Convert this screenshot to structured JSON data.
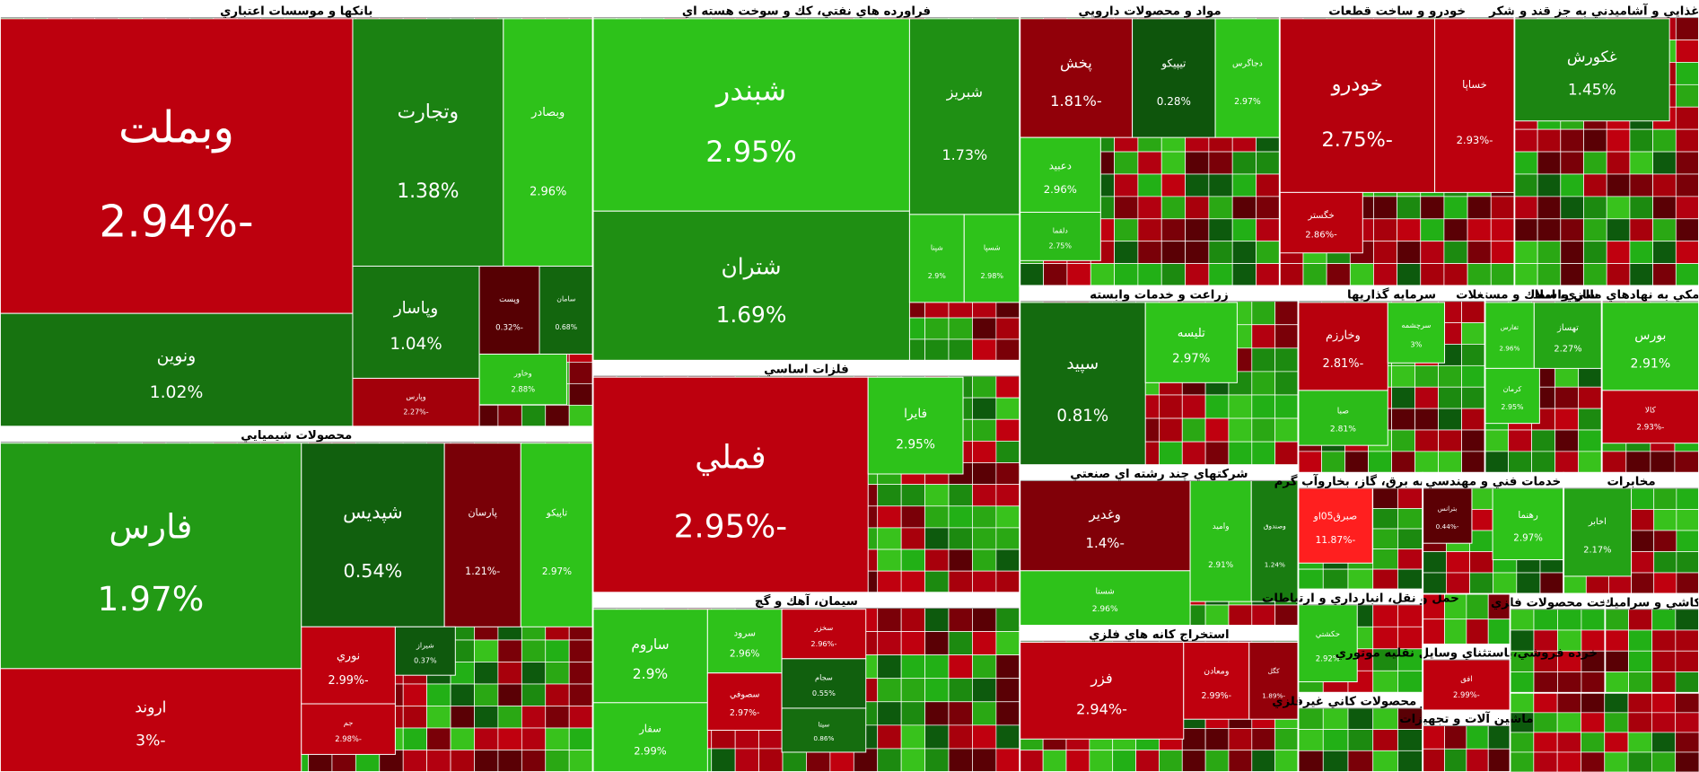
{
  "sectors": [
    {
      "title": "بانكها و موسسات اعتباري",
      "tiles": [
        {
          "name": "وبملت",
          "change": "-2.94%"
        },
        {
          "name": "ونوين",
          "change": "1.02%"
        },
        {
          "name": "وتجارت",
          "change": "1.38%"
        },
        {
          "name": "وبصادر",
          "change": "2.96%"
        },
        {
          "name": "وپاسار",
          "change": "1.04%"
        },
        {
          "name": "وپست",
          "change": "-0.32%"
        },
        {
          "name": "سامان",
          "change": "0.68%"
        },
        {
          "name": "وخاور",
          "change": "2.88%"
        },
        {
          "name": "وپارس",
          "change": "-2.27%"
        }
      ]
    },
    {
      "title": "محصولات شيميايي",
      "tiles": [
        {
          "name": "فارس",
          "change": "1.97%"
        },
        {
          "name": "اروند",
          "change": "-3%"
        },
        {
          "name": "شپديس",
          "change": "0.54%"
        },
        {
          "name": "پارسان",
          "change": "-1.21%"
        },
        {
          "name": "تاپيكو",
          "change": "2.97%"
        },
        {
          "name": "نوري",
          "change": "-2.99%"
        },
        {
          "name": "جم",
          "change": "-2.98%"
        },
        {
          "name": "شيراز",
          "change": "0.37%"
        }
      ]
    },
    {
      "title": "فراورده هاي نفتي، كك و سوخت هسته اي",
      "tiles": [
        {
          "name": "شبندر",
          "change": "2.95%"
        },
        {
          "name": "شتران",
          "change": "1.69%"
        },
        {
          "name": "شبريز",
          "change": "1.73%"
        },
        {
          "name": "شپنا",
          "change": "2.9%"
        },
        {
          "name": "شسپا",
          "change": "2.98%"
        }
      ]
    },
    {
      "title": "فلزات اساسي",
      "tiles": [
        {
          "name": "فملي",
          "change": "-2.95%"
        },
        {
          "name": "فايرا",
          "change": "2.95%"
        }
      ]
    },
    {
      "title": "سيمان، آهك و گچ",
      "tiles": [
        {
          "name": "ساروم",
          "change": "2.9%"
        },
        {
          "name": "سفار",
          "change": "2.99%"
        },
        {
          "name": "سرود",
          "change": "2.96%"
        },
        {
          "name": "سصوفي",
          "change": "-2.97%"
        },
        {
          "name": "سخزر",
          "change": "-2.96%"
        },
        {
          "name": "سجام",
          "change": "0.55%"
        },
        {
          "name": "سيتا",
          "change": "0.86%"
        }
      ]
    },
    {
      "title": "مواد و محصولات دارويي",
      "tiles": [
        {
          "name": "پخش",
          "change": "-1.81%"
        },
        {
          "name": "تيپيكو",
          "change": "0.28%"
        },
        {
          "name": "دجاگرس",
          "change": "2.97%"
        },
        {
          "name": "دعبيد",
          "change": "2.96%"
        },
        {
          "name": "دلقما",
          "change": "2.75%"
        }
      ]
    },
    {
      "title": "خودرو و ساخت قطعات",
      "tiles": [
        {
          "name": "خودرو",
          "change": "-2.75%"
        },
        {
          "name": "خساپا",
          "change": "-2.93%"
        },
        {
          "name": "خگستر",
          "change": "-2.86%"
        }
      ]
    },
    {
      "title": "لات غذايي و آشاميدني به جز قند و شكر",
      "tiles": [
        {
          "name": "غكورش",
          "change": "1.45%"
        }
      ]
    },
    {
      "title": "زراعت و خدمات وابسته",
      "tiles": [
        {
          "name": "سپيد",
          "change": "0.81%"
        },
        {
          "name": "تليسه",
          "change": "2.97%"
        }
      ]
    },
    {
      "title": "سرمايه گذاريها",
      "tiles": [
        {
          "name": "وخارزم",
          "change": "-2.81%"
        },
        {
          "name": "صبا",
          "change": "2.81%"
        },
        {
          "name": "سرچشمه",
          "change": "3%"
        }
      ]
    },
    {
      "title": "انبوه سازي، املاك و مستغلات",
      "tiles": [
        {
          "name": "تفارس",
          "change": "2.96%"
        },
        {
          "name": "تهساز",
          "change": "2.27%"
        },
        {
          "name": "كرمان",
          "change": "2.95%"
        }
      ]
    },
    {
      "title": "فعاليتهاي كمكي به نهادهاي مالي واسط",
      "tiles": [
        {
          "name": "بورس",
          "change": "2.91%"
        },
        {
          "name": "كالا",
          "change": "-2.93%"
        }
      ]
    },
    {
      "title": "شركتهاي چند رشته اي صنعتي",
      "tiles": [
        {
          "name": "وغدير",
          "change": "-1.4%"
        },
        {
          "name": "شستا",
          "change": "2.96%"
        },
        {
          "name": "واميد",
          "change": "2.91%"
        },
        {
          "name": "وصندوق",
          "change": "1.24%"
        }
      ]
    },
    {
      "title": "استخراج كانه هاي فلزي",
      "tiles": [
        {
          "name": "فزر",
          "change": "-2.94%"
        },
        {
          "name": "ومعادن",
          "change": "-2.99%"
        },
        {
          "name": "كگل",
          "change": "-1.89%"
        }
      ]
    },
    {
      "title": "عرضه برق، گاز، بخاروآب گرم",
      "tiles": [
        {
          "name": "صبرق05او",
          "change": "-11.87%"
        }
      ]
    },
    {
      "title": "حمل و نقل، انبارداري و ارتباطات",
      "tiles": [
        {
          "name": "حكشتي",
          "change": "2.92%"
        }
      ]
    },
    {
      "title": "ساير محصولات كاني غيرفلزي",
      "tiles": []
    },
    {
      "title": "خدمات فني و مهندسي",
      "tiles": [
        {
          "name": "بترانس",
          "change": "-0.44%"
        },
        {
          "name": "رهنما",
          "change": "2.97%"
        }
      ]
    },
    {
      "title": "مخابرات",
      "tiles": [
        {
          "name": "اخابر",
          "change": "2.17%"
        }
      ]
    },
    {
      "title": "ساخت محصولات فلزي",
      "tiles": []
    },
    {
      "title": "كاشي و سراميك",
      "tiles": []
    },
    {
      "title": "ماشين آلات و تجهيزات",
      "tiles": []
    },
    {
      "title": "خرده فروشي،باستثناي وسايل نقليه موتوري",
      "tiles": [
        {
          "name": "افق",
          "change": "-2.99%"
        }
      ]
    }
  ]
}
